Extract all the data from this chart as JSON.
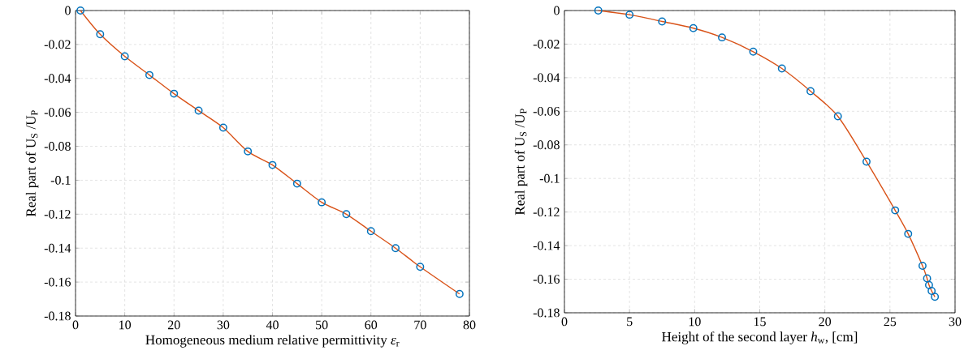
{
  "chart_data": [
    {
      "type": "scatter",
      "xlabel": "Homogeneous medium relative permittivity *ε*$_{r}$",
      "ylabel": "Real part of U$_{S}$ /U$_{P}$",
      "x": [
        1,
        5,
        10,
        15,
        20,
        25,
        30,
        35,
        40,
        45,
        50,
        55,
        60,
        65,
        70,
        78
      ],
      "xlim": [
        0,
        80
      ],
      "ylim": [
        -0.18,
        0
      ],
      "xticks": [
        0,
        10,
        20,
        30,
        40,
        50,
        60,
        70,
        80
      ],
      "yticks": [
        -0.18,
        -0.16,
        -0.14,
        -0.12,
        -0.1,
        -0.08,
        -0.06,
        -0.04,
        -0.02,
        0
      ],
      "grid": true,
      "series": [
        {
          "type": "line",
          "color": "#d95319",
          "values": [
            0,
            -0.014,
            -0.027,
            -0.038,
            -0.049,
            -0.059,
            -0.069,
            -0.083,
            -0.091,
            -0.102,
            -0.113,
            -0.12,
            -0.13,
            -0.14,
            -0.151,
            -0.167
          ]
        },
        {
          "color": "#0072bd",
          "marker": "circle",
          "values": [
            0,
            -0.014,
            -0.027,
            -0.038,
            -0.049,
            -0.059,
            -0.069,
            -0.083,
            -0.091,
            -0.102,
            -0.113,
            -0.12,
            -0.13,
            -0.14,
            -0.151,
            -0.167
          ]
        }
      ]
    },
    {
      "type": "scatter",
      "xlabel": "Height of the second layer *h*$_{w}$, [cm]",
      "ylabel": "Real part of U$_{S}$ /U$_{P}$",
      "x": [
        2.6,
        5,
        7.5,
        9.9,
        12.1,
        14.5,
        16.7,
        18.9,
        21,
        23.2,
        25.4,
        26.4,
        27.5,
        27.85,
        28.0,
        28.2,
        28.45
      ],
      "xlim": [
        0,
        30
      ],
      "ylim": [
        -0.18,
        0
      ],
      "xticks": [
        0,
        5,
        10,
        15,
        20,
        25,
        30
      ],
      "yticks": [
        -0.18,
        -0.16,
        -0.14,
        -0.12,
        -0.1,
        -0.08,
        -0.06,
        -0.04,
        -0.02,
        0
      ],
      "grid": true,
      "series": [
        {
          "type": "line",
          "color": "#d95319",
          "values": [
            0,
            -0.0025,
            -0.0065,
            -0.0105,
            -0.016,
            -0.0245,
            -0.0345,
            -0.048,
            -0.063,
            -0.09,
            -0.119,
            -0.133,
            -0.152,
            -0.1595,
            -0.1635,
            -0.167,
            -0.1705
          ]
        },
        {
          "color": "#0072bd",
          "marker": "circle",
          "values": [
            0,
            -0.0025,
            -0.0065,
            -0.0105,
            -0.016,
            -0.0245,
            -0.0345,
            -0.048,
            -0.063,
            -0.09,
            -0.119,
            -0.133,
            -0.152,
            -0.1595,
            -0.1635,
            -0.167,
            -0.1705
          ]
        }
      ]
    }
  ]
}
